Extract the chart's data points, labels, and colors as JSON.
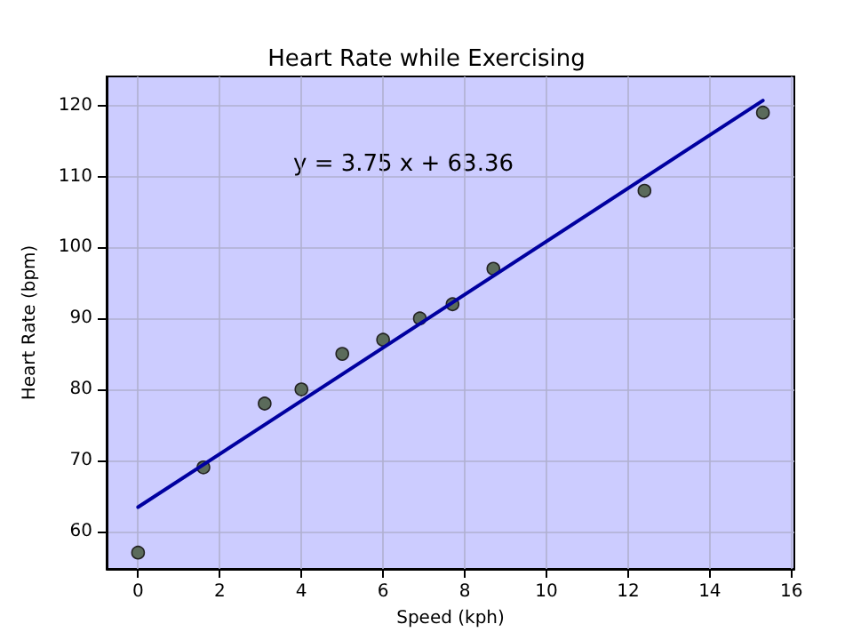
{
  "chart_data": {
    "type": "scatter",
    "title": "Heart Rate while Exercising",
    "xlabel": "Speed (kph)",
    "ylabel": "Heart Rate (bpm)",
    "annotations": [
      "y = 3.75 x + 63.36"
    ],
    "series": [
      {
        "color": "#5b6b5b",
        "x": [
          0,
          1.6,
          3.1,
          4,
          5,
          6,
          6.9,
          7.7,
          8.7,
          12.4,
          15.3
        ],
        "values": [
          57,
          69,
          78,
          80,
          85,
          87,
          90,
          92,
          97,
          108,
          119
        ],
        "marker": "circle"
      },
      {
        "type": "line",
        "color": "#0000a0",
        "x": [
          0,
          15.3
        ],
        "values": [
          63.4,
          120.7
        ],
        "marker": "none",
        "line_style": "solid"
      }
    ],
    "xlim": [
      -0.77,
      16.07
    ],
    "xticks": [
      0,
      2,
      4,
      6,
      8,
      10,
      12,
      14,
      16
    ],
    "ylim": [
      54.7,
      124.1
    ],
    "yticks": [
      60,
      70,
      80,
      90,
      100,
      110,
      120
    ],
    "grid": true
  }
}
